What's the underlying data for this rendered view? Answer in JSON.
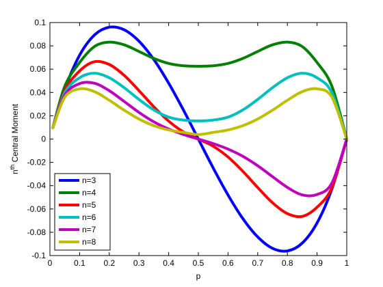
{
  "chart_data": {
    "type": "line",
    "xlabel": "p",
    "ylabel_prefix": "n",
    "ylabel_sup": "th",
    "ylabel_suffix": " Central Moment",
    "xlim": [
      0,
      1
    ],
    "ylim": [
      -0.1,
      0.1
    ],
    "x_ticks": [
      "0",
      "0.1",
      "0.2",
      "0.3",
      "0.4",
      "0.5",
      "0.6",
      "0.7",
      "0.8",
      "0.9",
      "1"
    ],
    "y_ticks": [
      "-0.1",
      "-0.08",
      "-0.06",
      "-0.04",
      "-0.02",
      "0",
      "0.02",
      "0.04",
      "0.06",
      "0.08",
      "0.1"
    ],
    "grid": false,
    "legend_position": "bottom-left",
    "x": [
      0.01,
      0.05,
      0.1,
      0.15,
      0.2,
      0.25,
      0.3,
      0.35,
      0.4,
      0.45,
      0.5,
      0.55,
      0.6,
      0.65,
      0.7,
      0.75,
      0.8,
      0.85,
      0.9,
      0.95,
      1.0
    ],
    "series": [
      {
        "name": "n=3",
        "color": "#0000ff",
        "values": [
          0.0098,
          0.0428,
          0.072,
          0.0893,
          0.096,
          0.0938,
          0.084,
          0.0683,
          0.048,
          0.0248,
          0,
          -0.0248,
          -0.048,
          -0.0683,
          -0.084,
          -0.0938,
          -0.096,
          -0.0893,
          -0.072,
          -0.0428,
          0
        ]
      },
      {
        "name": "n=4",
        "color": "#008000",
        "values": [
          0.0098,
          0.0453,
          0.0657,
          0.0794,
          0.0832,
          0.0809,
          0.0752,
          0.0692,
          0.0649,
          0.0629,
          0.0625,
          0.0629,
          0.0649,
          0.0692,
          0.0752,
          0.0809,
          0.0832,
          0.0794,
          0.0657,
          0.0453,
          0
        ]
      },
      {
        "name": "n=5",
        "color": "#ff0000",
        "values": [
          0.0097,
          0.0416,
          0.0585,
          0.0664,
          0.064,
          0.0547,
          0.0416,
          0.0277,
          0.0154,
          0.0061,
          0,
          -0.0061,
          -0.0154,
          -0.0277,
          -0.0416,
          -0.0547,
          -0.064,
          -0.0664,
          -0.0585,
          -0.0416,
          0
        ]
      },
      {
        "name": "n=6",
        "color": "#00bfbf",
        "values": [
          0.0097,
          0.0397,
          0.0526,
          0.0565,
          0.0526,
          0.0441,
          0.034,
          0.025,
          0.0188,
          0.0163,
          0.0156,
          0.0163,
          0.0188,
          0.025,
          0.034,
          0.0441,
          0.0526,
          0.0565,
          0.0526,
          0.0397,
          0
        ]
      },
      {
        "name": "n=7",
        "color": "#bf00bf",
        "values": [
          0.0096,
          0.0377,
          0.0476,
          0.0479,
          0.0415,
          0.0323,
          0.0229,
          0.0148,
          0.0086,
          0.0039,
          0,
          -0.0039,
          -0.0086,
          -0.0148,
          -0.0229,
          -0.0323,
          -0.0415,
          -0.0479,
          -0.0476,
          -0.0377,
          0
        ]
      },
      {
        "name": "n=8",
        "color": "#bfbf00",
        "values": [
          0.0096,
          0.0359,
          0.0431,
          0.0407,
          0.0333,
          0.0248,
          0.0172,
          0.0115,
          0.0078,
          0.0057,
          0.0039,
          0.0057,
          0.0078,
          0.0115,
          0.0172,
          0.0248,
          0.0333,
          0.0407,
          0.0431,
          0.0359,
          0
        ]
      }
    ]
  }
}
